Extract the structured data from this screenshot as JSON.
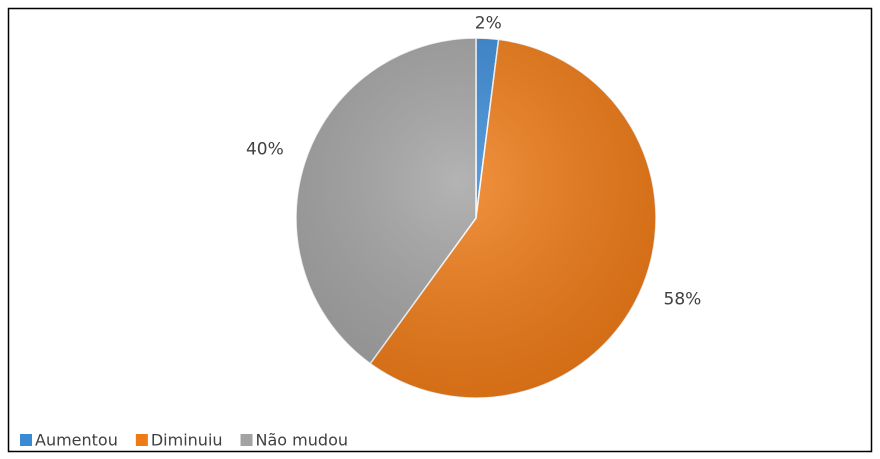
{
  "chart_data": {
    "type": "pie",
    "categories": [
      "Aumentou",
      "Diminuiu",
      "Não mudou"
    ],
    "values": [
      2,
      58,
      40
    ],
    "value_labels": [
      "2%",
      "58%",
      "40%"
    ],
    "colors": [
      "#3a8ad6",
      "#ef7b17",
      "#a3a3a3"
    ],
    "legend": "bottom-left"
  }
}
